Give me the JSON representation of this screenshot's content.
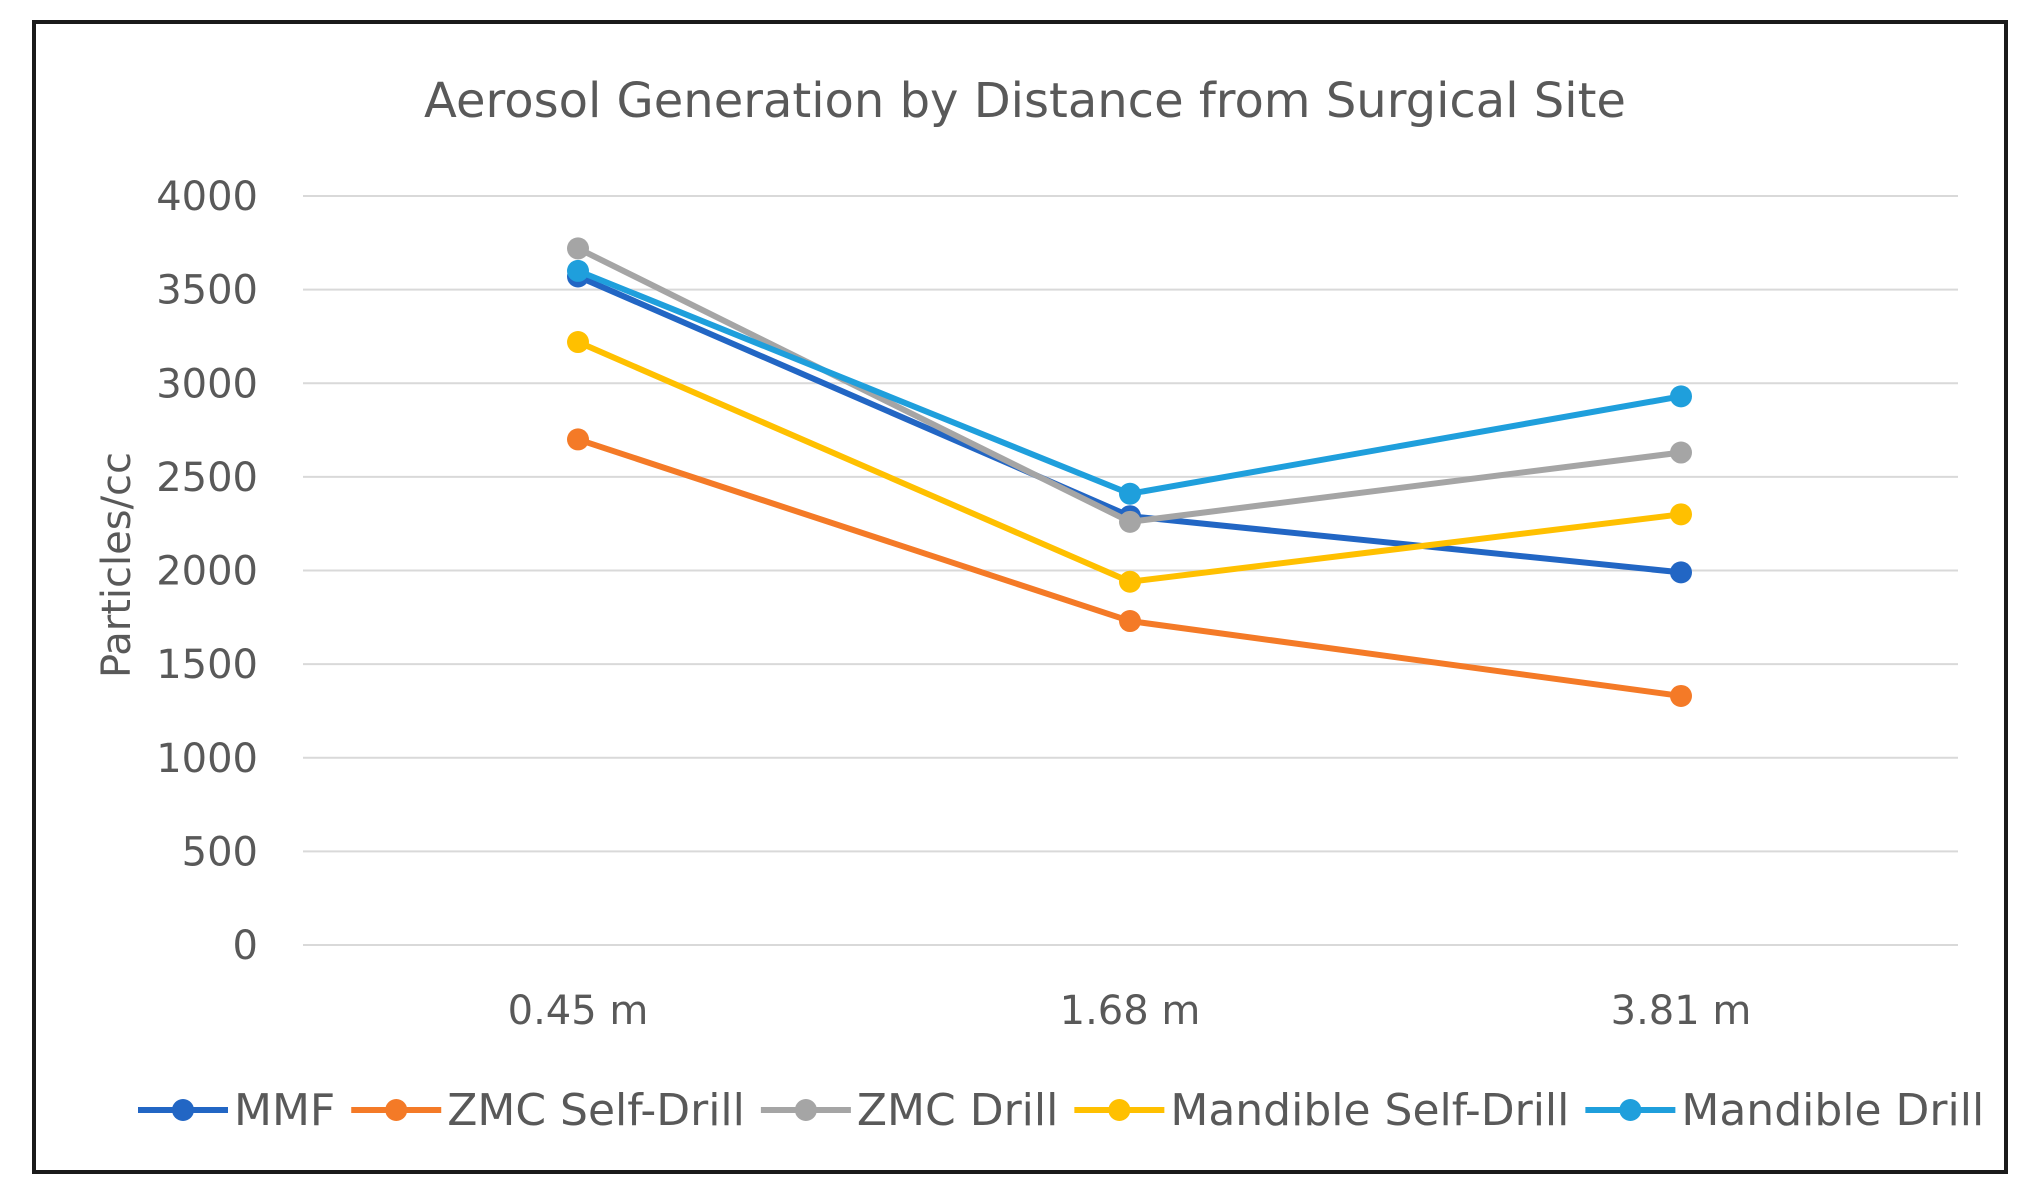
{
  "chart_data": {
    "type": "line",
    "title": "Aerosol Generation by Distance from Surgical Site",
    "xlabel": "",
    "ylabel": "Particles/cc",
    "categories": [
      "0.45 m",
      "1.68 m",
      "3.81 m"
    ],
    "ylim": [
      0,
      4000
    ],
    "yticks": [
      0,
      500,
      1000,
      1500,
      2000,
      2500,
      3000,
      3500,
      4000
    ],
    "grid": true,
    "legend_position": "bottom",
    "series": [
      {
        "name": "MMF",
        "color": "#2266c4",
        "values": [
          3570,
          2290,
          1990
        ]
      },
      {
        "name": "ZMC Self-Drill",
        "color": "#f47a27",
        "values": [
          2700,
          1730,
          1330
        ]
      },
      {
        "name": "ZMC Drill",
        "color": "#a5a5a5",
        "values": [
          3720,
          2260,
          2630
        ]
      },
      {
        "name": "Mandible Self-Drill",
        "color": "#ffc000",
        "values": [
          3220,
          1940,
          2300
        ]
      },
      {
        "name": "Mandible Drill",
        "color": "#1f9fdc",
        "values": [
          3600,
          2410,
          2930
        ]
      }
    ]
  }
}
